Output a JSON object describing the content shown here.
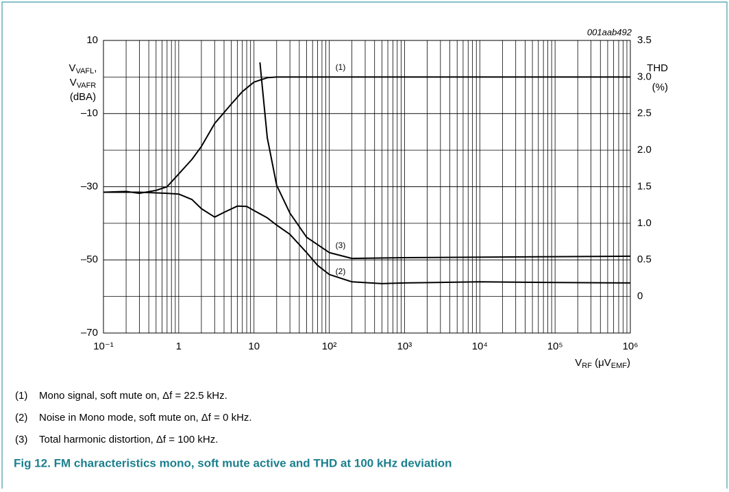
{
  "chart_data": {
    "type": "line",
    "annotation": "001aab492",
    "ylabel": [
      [
        "V",
        "VAFL",
        ","
      ],
      [
        "V",
        "VAFR"
      ],
      [
        "(dBA)"
      ]
    ],
    "y2label": [
      "THD",
      "(%)"
    ],
    "xlabel": [
      "V",
      "RF",
      " (μV",
      "EMF",
      ")"
    ],
    "xlog": true,
    "grid": true,
    "minor_grid": true,
    "xlim": [
      0.1,
      1000000
    ],
    "xticks": [
      {
        "value": 0.1,
        "label": "10⁻¹"
      },
      1,
      10,
      {
        "value": 100,
        "label": "10²"
      },
      {
        "value": 1000,
        "label": "10³"
      },
      {
        "value": 10000,
        "label": "10⁴"
      },
      {
        "value": 100000,
        "label": "10⁵"
      },
      {
        "value": 1000000,
        "label": "10⁶"
      }
    ],
    "ylim": [
      -70,
      10
    ],
    "yticks": [
      10,
      {
        "value": -10,
        "label": "–10"
      },
      {
        "value": -30,
        "label": "–30"
      },
      {
        "value": -50,
        "label": "–50"
      },
      {
        "value": -70,
        "label": "–70"
      }
    ],
    "y2lim": [
      -0.5,
      3.5
    ],
    "y2ticks": [
      3.5,
      {
        "value": 3,
        "label": "3.0"
      },
      2.5,
      {
        "value": 2,
        "label": "2.0"
      },
      1.5,
      {
        "value": 1,
        "label": "1.0"
      },
      0.5,
      0
    ],
    "series": [
      {
        "name": "(1)",
        "color": "#000000",
        "x": [
          0.1,
          0.2,
          0.3,
          0.5,
          0.7,
          1,
          1.5,
          2,
          3,
          5,
          7,
          10,
          15,
          20,
          100,
          1000,
          1000000
        ],
        "values": [
          -31.5,
          -31.3,
          -31.8,
          -31,
          -30,
          -26.5,
          -22.5,
          -19,
          -12.7,
          -7.4,
          -4,
          -1.4,
          -0.2,
          0,
          0,
          0,
          0
        ]
      },
      {
        "name": "(2)",
        "color": "#000000",
        "x": [
          0.1,
          0.3,
          0.7,
          1,
          1.5,
          2,
          3,
          4,
          6,
          8,
          10,
          15,
          20,
          30,
          50,
          70,
          100,
          200,
          500,
          1000,
          10000,
          100000,
          1000000
        ],
        "values": [
          -31.5,
          -31.5,
          -31.8,
          -32,
          -33.5,
          -36,
          -38.3,
          -37,
          -35.3,
          -35.4,
          -36.5,
          -38.5,
          -40.5,
          -43,
          -48,
          -51.5,
          -54,
          -56,
          -56.5,
          -56.3,
          -56,
          -56.2,
          -56.3
        ]
      },
      {
        "name": "(3)",
        "color": "#000000",
        "axis": "y2",
        "x": [
          12,
          13,
          15,
          20,
          30,
          50,
          100,
          200,
          1000,
          1000000
        ],
        "values": [
          3.2,
          2.83,
          2.17,
          1.52,
          1.14,
          0.81,
          0.6,
          0.52,
          0.53,
          0.55
        ]
      }
    ],
    "notes": [
      {
        "num": "(1)",
        "text": "Mono signal, soft mute on, Δf = 22.5 kHz."
      },
      {
        "num": "(2)",
        "text": "Noise in Mono mode, soft mute on, Δf = 0 kHz."
      },
      {
        "num": "(3)",
        "text": "Total harmonic distortion, Δf = 100 kHz."
      }
    ],
    "caption": "Fig 12.  FM characteristics mono, soft mute active and THD at 100 kHz deviation"
  }
}
